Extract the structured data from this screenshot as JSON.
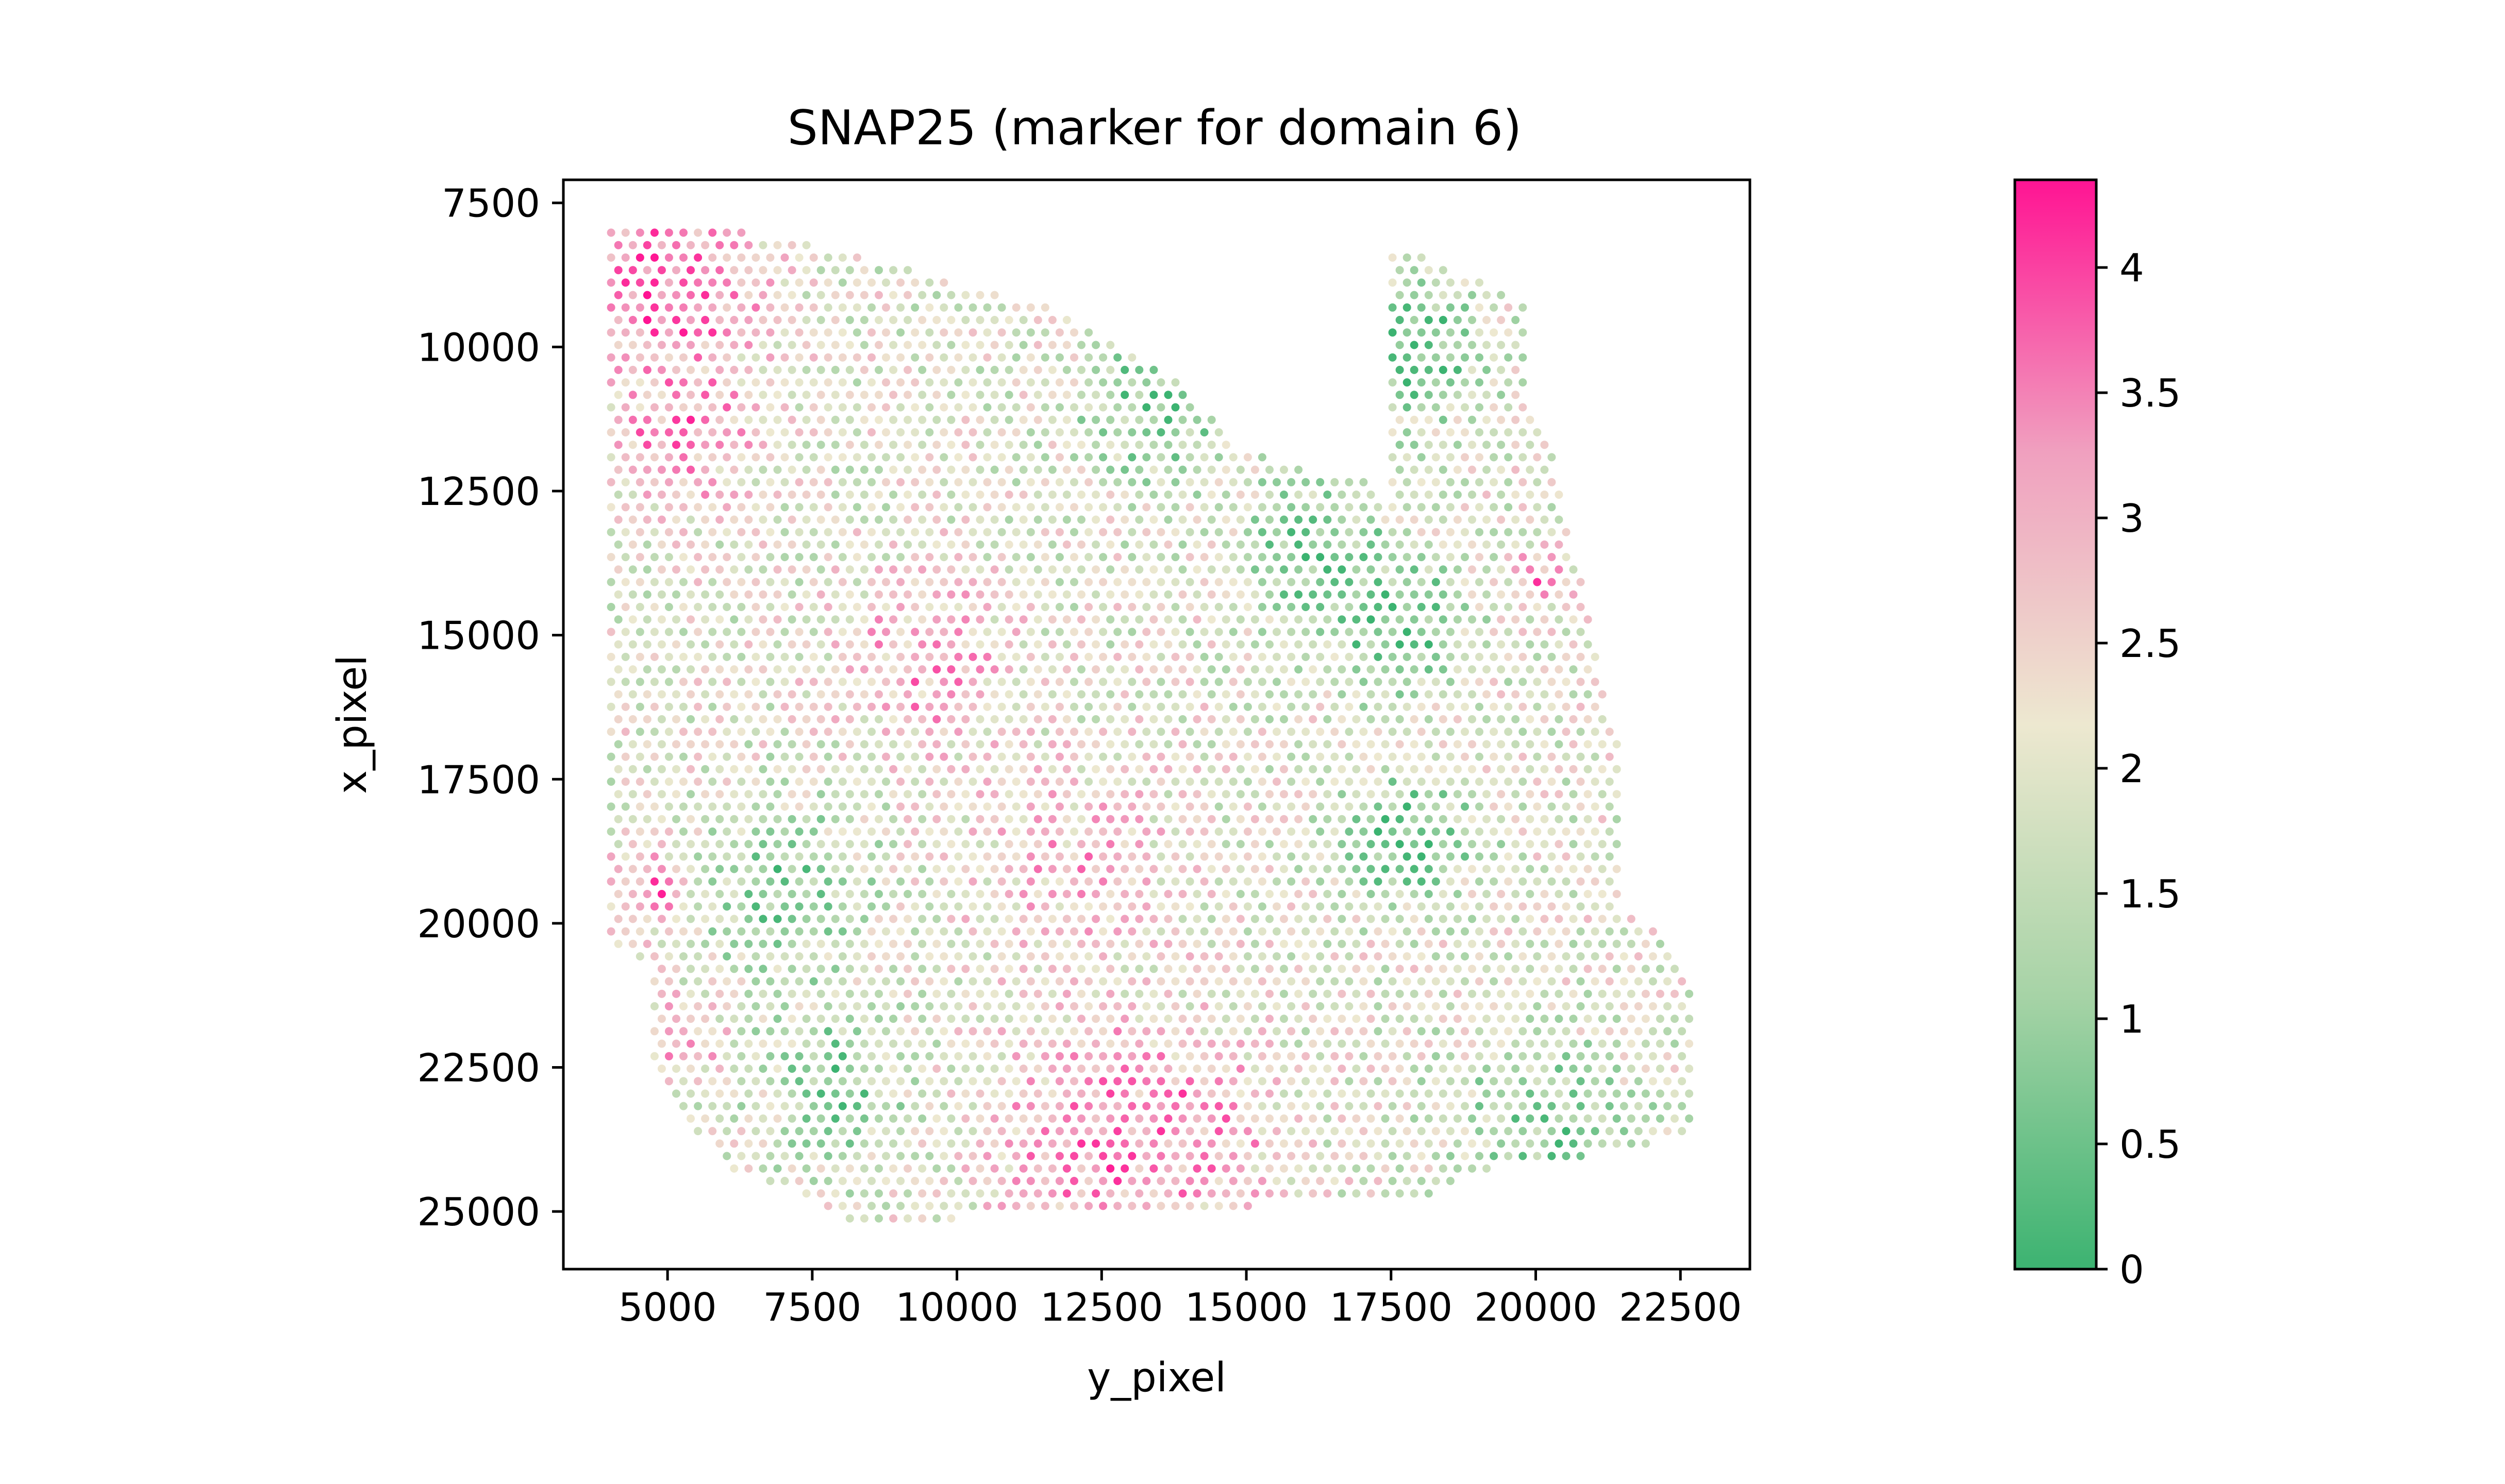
{
  "chart_data": {
    "type": "scatter",
    "title": "SNAP25 (marker for domain 6)",
    "xlabel": "y_pixel",
    "ylabel": "x_pixel",
    "xlim": [
      3200,
      23700
    ],
    "ylim": [
      26000,
      7100
    ],
    "y_inverted": true,
    "grid": false,
    "x_ticks": [
      5000,
      7500,
      10000,
      12500,
      15000,
      17500,
      20000,
      22500
    ],
    "x_tick_labels": [
      "5000",
      "7500",
      "10000",
      "12500",
      "15000",
      "17500",
      "20000",
      "22500"
    ],
    "y_ticks": [
      7500,
      10000,
      12500,
      15000,
      17500,
      20000,
      22500,
      25000
    ],
    "y_tick_labels": [
      "7500",
      "10000",
      "12500",
      "15000",
      "17500",
      "20000",
      "22500",
      "25000"
    ],
    "colorbar": {
      "range": [
        0,
        4.35
      ],
      "ticks": [
        0,
        0.5,
        1,
        1.5,
        2,
        2.5,
        3,
        3.5,
        4
      ],
      "tick_labels": [
        "0",
        "0.5",
        "1",
        "1.5",
        "2",
        "2.5",
        "3",
        "3.5",
        "4"
      ],
      "colors": [
        "#3cb371",
        "#a6d3a6",
        "#ede8d0",
        "#f0a0bf",
        "#ff1493"
      ]
    },
    "points_description_values": {
      "tissue_outline_yx": [
        [
          4000,
          7900
        ],
        [
          6000,
          7900
        ],
        [
          9000,
          8600
        ],
        [
          11500,
          9300
        ],
        [
          13500,
          10300
        ],
        [
          15000,
          11800
        ],
        [
          16000,
          12100
        ],
        [
          17000,
          12300
        ],
        [
          17500,
          13000
        ],
        [
          17500,
          8200
        ],
        [
          19800,
          9200
        ],
        [
          19900,
          11200
        ],
        [
          20300,
          11800
        ],
        [
          20600,
          13300
        ],
        [
          21000,
          14800
        ],
        [
          21200,
          16000
        ],
        [
          21500,
          17000
        ],
        [
          21500,
          19800
        ],
        [
          22200,
          20200
        ],
        [
          22700,
          21300
        ],
        [
          22700,
          23600
        ],
        [
          21700,
          24000
        ],
        [
          19500,
          24100
        ],
        [
          18000,
          24800
        ],
        [
          16500,
          24800
        ],
        [
          14000,
          25000
        ],
        [
          11000,
          25000
        ],
        [
          8500,
          25300
        ],
        [
          7000,
          24600
        ],
        [
          6000,
          24200
        ],
        [
          4800,
          22700
        ],
        [
          4700,
          21500
        ],
        [
          4700,
          20700
        ],
        [
          4000,
          20400
        ]
      ],
      "low_regions_yx": [
        [
          17800,
          10000,
          1200,
          0.1
        ],
        [
          17600,
          14800,
          1100,
          0.2
        ],
        [
          17800,
          18500,
          1100,
          0.2
        ],
        [
          16200,
          13500,
          1200,
          0.5
        ],
        [
          13500,
          11000,
          1300,
          0.6
        ],
        [
          7000,
          19500,
          1500,
          0.7
        ],
        [
          8000,
          22800,
          1300,
          0.8
        ],
        [
          20000,
          23500,
          1500,
          0.9
        ],
        [
          21000,
          24000,
          900,
          0.7
        ]
      ],
      "high_regions_yx": [
        [
          5000,
          9000,
          1600,
          3.9
        ],
        [
          5200,
          11500,
          1300,
          3.4
        ],
        [
          4600,
          19500,
          700,
          3.7
        ],
        [
          5200,
          22000,
          700,
          3.5
        ],
        [
          12500,
          23800,
          1900,
          3.6
        ],
        [
          14000,
          23500,
          1500,
          3.3
        ],
        [
          20100,
          14000,
          500,
          3.4
        ],
        [
          9500,
          15500,
          1500,
          3.2
        ],
        [
          12000,
          19000,
          1800,
          2.9
        ]
      ],
      "base_value": 2.0,
      "spacing": 250
    }
  }
}
